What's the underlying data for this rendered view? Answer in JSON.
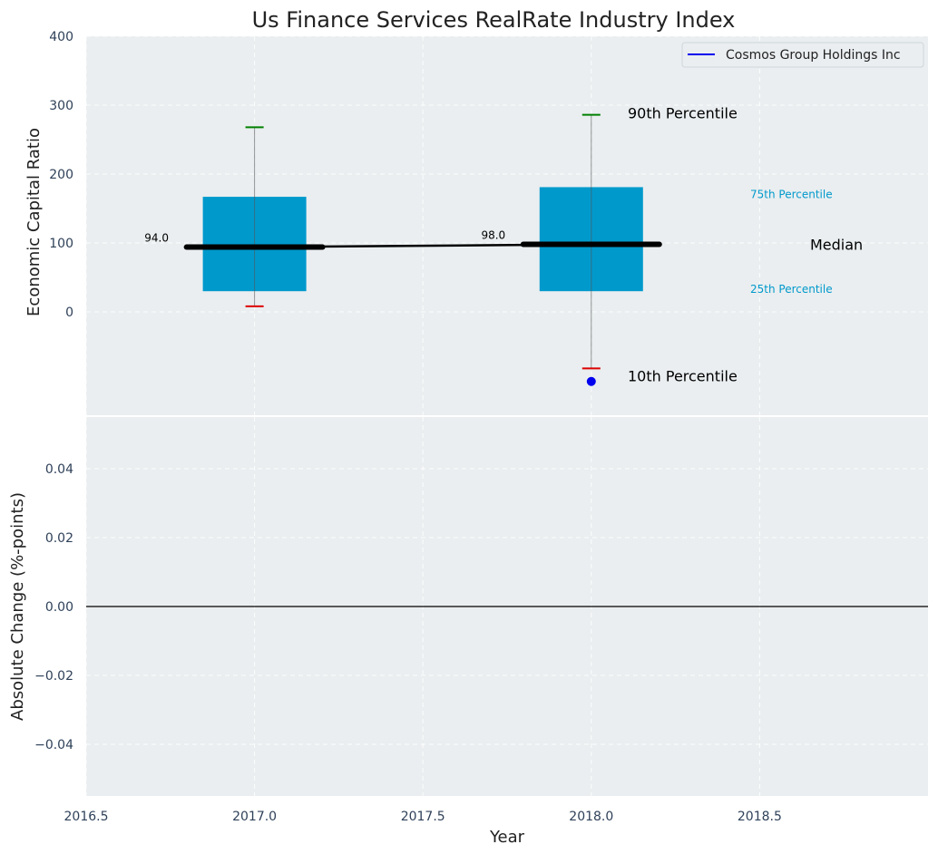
{
  "chart_data": [
    {
      "type": "box",
      "title": "Us Finance Services RealRate Industry Index",
      "xlabel": "",
      "ylabel": "Economic Capital Ratio",
      "ylim": [
        -150,
        400
      ],
      "xlim": [
        2016.5,
        2019.0
      ],
      "yticks": [
        0,
        100,
        200,
        300,
        400
      ],
      "boxes": [
        {
          "x": 2017.0,
          "p10": 8,
          "p25": 30,
          "median": 94.0,
          "median_label": "94.0",
          "p75": 167,
          "p90": 268
        },
        {
          "x": 2018.0,
          "p10": -82,
          "p25": 30,
          "median": 98.0,
          "median_label": "98.0",
          "p75": 181,
          "p90": 286
        }
      ],
      "series": [
        {
          "name": "Cosmos Group Holdings Inc",
          "x": [
            2018.0
          ],
          "y": [
            -101
          ],
          "color": "#0000ee"
        }
      ],
      "median_line": {
        "x": [
          2017.0,
          2018.0
        ],
        "y": [
          94.0,
          98.0
        ]
      },
      "legend": {
        "position": "top-right",
        "entries": [
          "Cosmos Group Holdings Inc"
        ]
      },
      "annotations": {
        "p90": "90th Percentile",
        "p75": "75th Percentile",
        "median": "Median",
        "p25": "25th Percentile",
        "p10": "10th Percentile"
      },
      "colors": {
        "box": "#0099cc",
        "whisker_top": "#008000",
        "whisker_bottom": "#dd0000",
        "median": "#000000",
        "background": "#eaeef0"
      }
    },
    {
      "type": "line",
      "xlabel": "Year",
      "ylabel": "Absolute Change (%-points)",
      "ylim": [
        -0.055,
        0.055
      ],
      "yticks": [
        -0.04,
        -0.02,
        0.0,
        0.02,
        0.04
      ],
      "ytick_labels": [
        "−0.04",
        "−0.02",
        "0.00",
        "0.02",
        "0.04"
      ],
      "xticks": [
        2016.5,
        2017.0,
        2017.5,
        2018.0,
        2018.5
      ],
      "xtick_labels": [
        "2016.5",
        "2017.0",
        "2017.5",
        "2018.0",
        "2018.5"
      ],
      "zero_line": 0.0
    }
  ]
}
